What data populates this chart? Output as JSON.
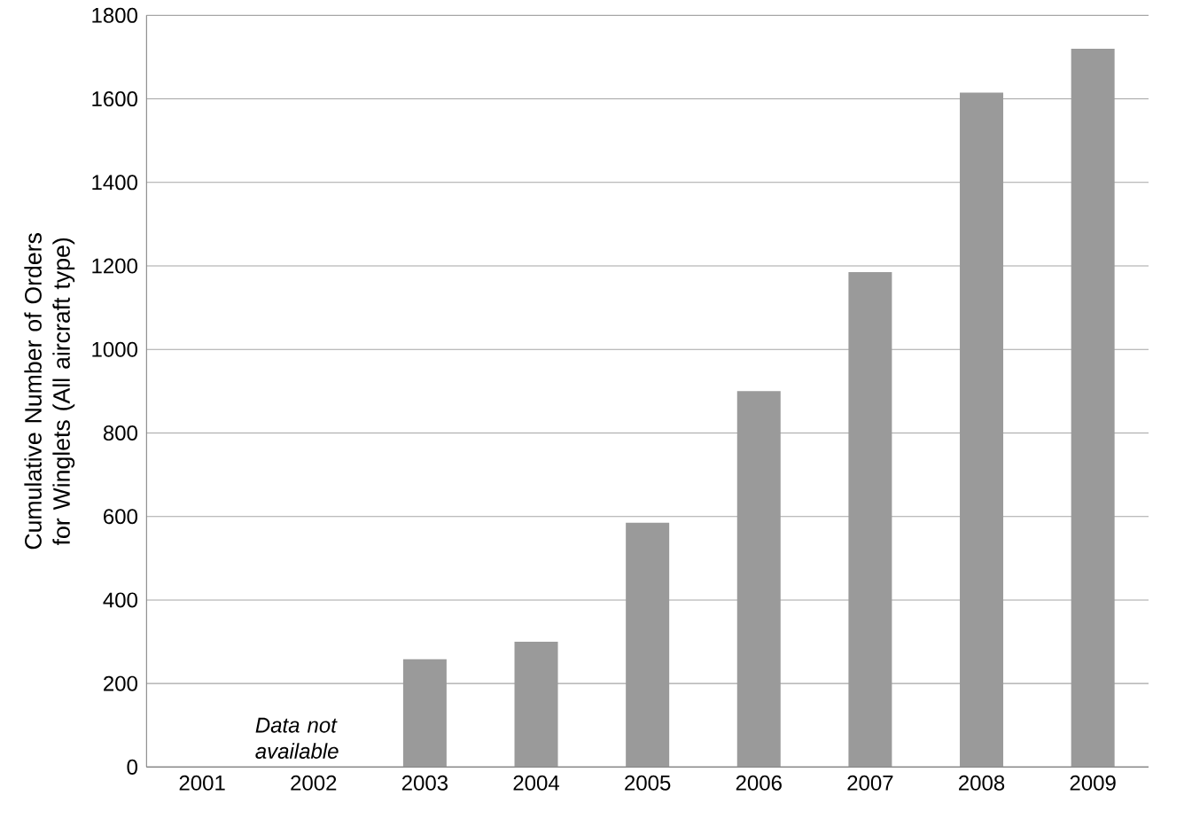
{
  "chart_data": {
    "type": "bar",
    "ylabel": "Cumulative Number of Orders for Winglets (All aircraft type)",
    "categories": [
      "2001",
      "2002",
      "2003",
      "2004",
      "2005",
      "2006",
      "2007",
      "2008",
      "2009"
    ],
    "values": [
      null,
      null,
      258,
      300,
      585,
      900,
      1185,
      1615,
      1720
    ],
    "color": "#9a9a9a",
    "ylim": [
      0,
      1800
    ],
    "yticks": [
      0,
      200,
      400,
      600,
      800,
      1000,
      1200,
      1400,
      1600,
      1800
    ],
    "grid": "y",
    "annotations": [
      "Data not available"
    ]
  }
}
